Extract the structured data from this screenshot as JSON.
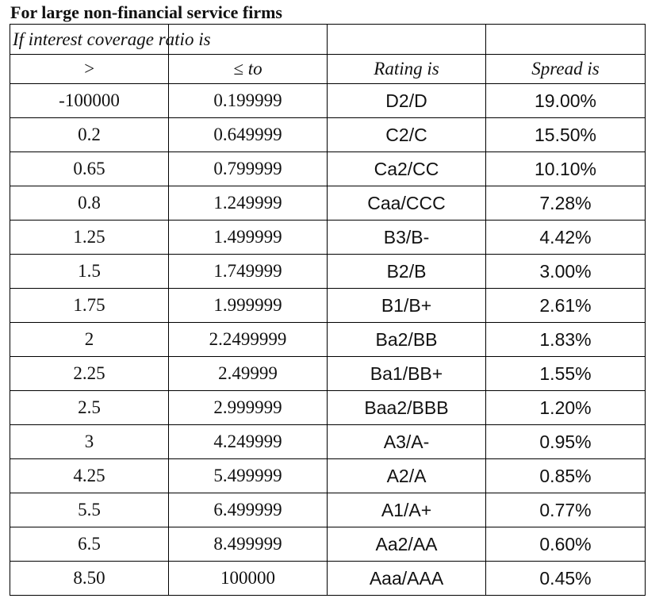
{
  "title": "For large non-financial service firms",
  "intro": "If interest coverage ratio is",
  "headers": [
    ">",
    "≤ to",
    "Rating is",
    "Spread is"
  ],
  "rows": [
    {
      "gt": "-100000",
      "le": "0.199999",
      "rating": "D2/D",
      "spread": "19.00%"
    },
    {
      "gt": "0.2",
      "le": "0.649999",
      "rating": "C2/C",
      "spread": "15.50%"
    },
    {
      "gt": "0.65",
      "le": "0.799999",
      "rating": "Ca2/CC",
      "spread": "10.10%"
    },
    {
      "gt": "0.8",
      "le": "1.249999",
      "rating": "Caa/CCC",
      "spread": "7.28%"
    },
    {
      "gt": "1.25",
      "le": "1.499999",
      "rating": "B3/B-",
      "spread": "4.42%"
    },
    {
      "gt": "1.5",
      "le": "1.749999",
      "rating": "B2/B",
      "spread": "3.00%"
    },
    {
      "gt": "1.75",
      "le": "1.999999",
      "rating": "B1/B+",
      "spread": "2.61%"
    },
    {
      "gt": "2",
      "le": "2.2499999",
      "rating": "Ba2/BB",
      "spread": "1.83%"
    },
    {
      "gt": "2.25",
      "le": "2.49999",
      "rating": "Ba1/BB+",
      "spread": "1.55%"
    },
    {
      "gt": "2.5",
      "le": "2.999999",
      "rating": "Baa2/BBB",
      "spread": "1.20%"
    },
    {
      "gt": "3",
      "le": "4.249999",
      "rating": "A3/A-",
      "spread": "0.95%"
    },
    {
      "gt": "4.25",
      "le": "5.499999",
      "rating": "A2/A",
      "spread": "0.85%"
    },
    {
      "gt": "5.5",
      "le": "6.499999",
      "rating": "A1/A+",
      "spread": "0.77%"
    },
    {
      "gt": "6.5",
      "le": "8.499999",
      "rating": "Aa2/AA",
      "spread": "0.60%"
    },
    {
      "gt": "8.50",
      "le": "100000",
      "rating": "Aaa/AAA",
      "spread": "0.45%"
    }
  ]
}
